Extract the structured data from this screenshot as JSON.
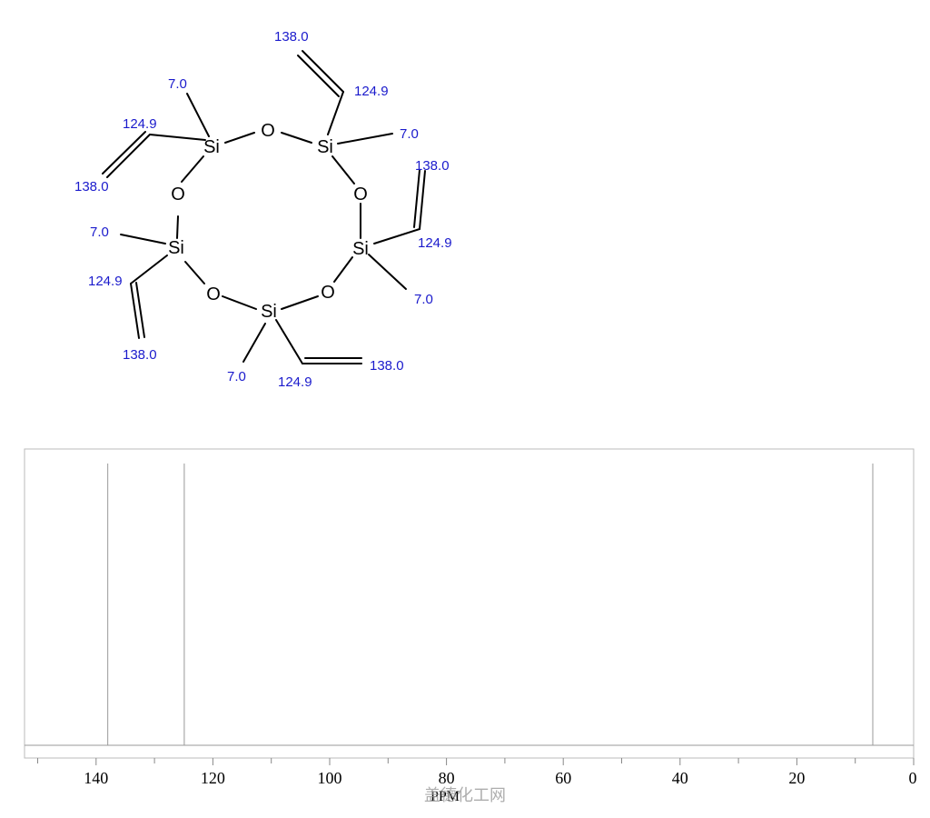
{
  "colors": {
    "shift_label": "#1a1acc",
    "peak": "#999999",
    "frame": "#bbbbbb",
    "axis": "#888888"
  },
  "molecule": {
    "atoms": [
      {
        "id": "si1",
        "label": "Si"
      },
      {
        "id": "si2",
        "label": "Si"
      },
      {
        "id": "si3",
        "label": "Si"
      },
      {
        "id": "si4",
        "label": "Si"
      },
      {
        "id": "si5",
        "label": "Si"
      },
      {
        "id": "o1",
        "label": "O"
      },
      {
        "id": "o2",
        "label": "O"
      },
      {
        "id": "o3",
        "label": "O"
      },
      {
        "id": "o4",
        "label": "O"
      },
      {
        "id": "o5",
        "label": "O"
      }
    ],
    "shift_labels": [
      "138.0",
      "124.9",
      "7.0",
      "124.9",
      "138.0",
      "7.0",
      "138.0",
      "124.9",
      "7.0",
      "7.0",
      "124.9",
      "138.0",
      "7.0",
      "124.9",
      "138.0"
    ]
  },
  "chart_data": {
    "type": "line",
    "xlabel": "PPM",
    "xlim": [
      152,
      0
    ],
    "xticks": [
      "140",
      "120",
      "100",
      "80",
      "60",
      "40",
      "20",
      "0"
    ],
    "xtick_values": [
      140,
      120,
      100,
      80,
      60,
      40,
      20,
      0
    ],
    "minor_tick_step": 10,
    "peaks": [
      {
        "ppm": 138.0,
        "intensity": 1.0
      },
      {
        "ppm": 124.9,
        "intensity": 1.0
      },
      {
        "ppm": 7.0,
        "intensity": 1.0
      }
    ]
  },
  "watermark": "盖德化工网"
}
